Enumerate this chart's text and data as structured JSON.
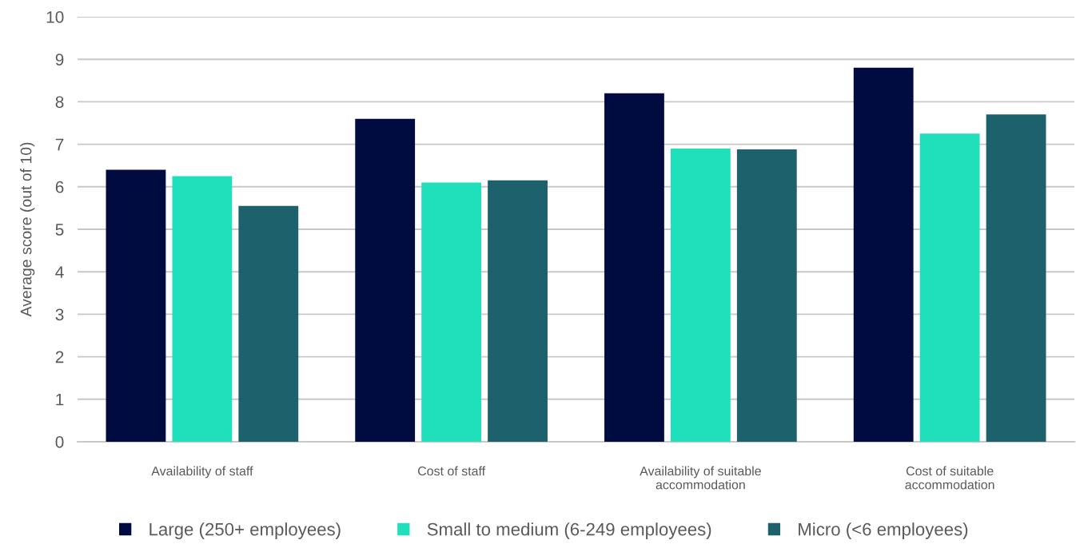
{
  "chart_data": {
    "type": "bar",
    "ylabel": "Average score (out of 10)",
    "categories": [
      "Availability of staff",
      "Cost of staff",
      "Availability of suitable\naccommodation",
      "Cost of suitable\naccommodation"
    ],
    "series": [
      {
        "name": "Large (250+ employees)",
        "color": "#000b40",
        "values": [
          6.4,
          7.6,
          8.2,
          8.8
        ]
      },
      {
        "name": "Small to medium (6-249 employees)",
        "color": "#20dfbb",
        "values": [
          6.25,
          6.1,
          6.9,
          7.25
        ]
      },
      {
        "name": "Micro (<6 employees)",
        "color": "#1c616b",
        "values": [
          5.55,
          6.15,
          6.88,
          7.7
        ]
      }
    ],
    "ylim": [
      0,
      10
    ],
    "yticks": [
      0,
      1,
      2,
      3,
      4,
      5,
      6,
      7,
      8,
      9,
      10
    ],
    "grid": "y",
    "legend": "bottom"
  }
}
